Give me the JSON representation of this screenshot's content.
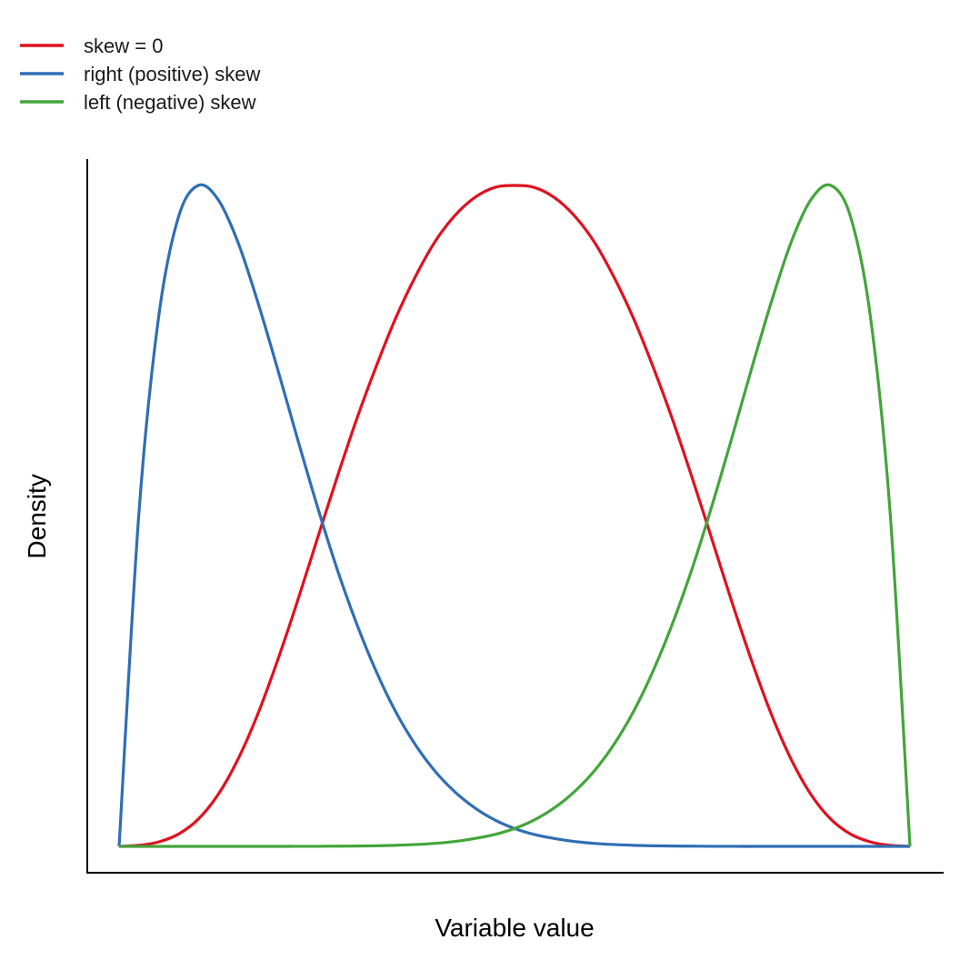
{
  "chart_data": {
    "type": "line",
    "xlabel": "Variable value",
    "ylabel": "Density",
    "xlim": [
      0,
      1
    ],
    "ylim": [
      0,
      1
    ],
    "grid": false,
    "legend_position": "top-left",
    "x": [
      0,
      0.025,
      0.05,
      0.075,
      0.1,
      0.125,
      0.15,
      0.175,
      0.2,
      0.225,
      0.25,
      0.275,
      0.3,
      0.325,
      0.35,
      0.375,
      0.4,
      0.425,
      0.45,
      0.475,
      0.5,
      0.525,
      0.55,
      0.575,
      0.6,
      0.625,
      0.65,
      0.675,
      0.7,
      0.725,
      0.75,
      0.775,
      0.8,
      0.825,
      0.85,
      0.875,
      0.9,
      0.925,
      0.95,
      0.975,
      1
    ],
    "series": [
      {
        "name": "skew = 0",
        "color": "#e0111f",
        "values": [
          0,
          0.0016,
          0.0067,
          0.0185,
          0.041,
          0.078,
          0.131,
          0.199,
          0.28,
          0.369,
          0.463,
          0.556,
          0.645,
          0.726,
          0.8,
          0.863,
          0.916,
          0.955,
          0.982,
          0.997,
          1,
          0.997,
          0.982,
          0.955,
          0.916,
          0.863,
          0.8,
          0.726,
          0.645,
          0.556,
          0.463,
          0.369,
          0.28,
          0.199,
          0.131,
          0.078,
          0.041,
          0.0185,
          0.0067,
          0.0016,
          0
        ]
      },
      {
        "name": "right (positive) skew",
        "color": "#2f6eb5",
        "values": [
          0,
          0.503,
          0.801,
          0.952,
          1,
          0.979,
          0.915,
          0.825,
          0.724,
          0.619,
          0.517,
          0.422,
          0.338,
          0.265,
          0.203,
          0.153,
          0.113,
          0.082,
          0.058,
          0.04,
          0.027,
          0.018,
          0.012,
          0.0075,
          0.0046,
          0.0028,
          0.0016,
          0.0009,
          0.0005,
          0.0003,
          0.0001,
          0.0001,
          0,
          0,
          0,
          0,
          0,
          0,
          0,
          0,
          0
        ]
      },
      {
        "name": "left (negative) skew",
        "color": "#43a53a",
        "values": [
          0,
          0,
          0,
          0,
          0,
          0,
          0,
          0,
          0,
          0.0001,
          0.0001,
          0.0003,
          0.0005,
          0.0009,
          0.0016,
          0.0028,
          0.0046,
          0.0075,
          0.012,
          0.018,
          0.027,
          0.04,
          0.058,
          0.082,
          0.113,
          0.153,
          0.203,
          0.265,
          0.338,
          0.422,
          0.517,
          0.619,
          0.724,
          0.825,
          0.915,
          0.979,
          1,
          0.952,
          0.801,
          0.503,
          0
        ]
      }
    ]
  }
}
